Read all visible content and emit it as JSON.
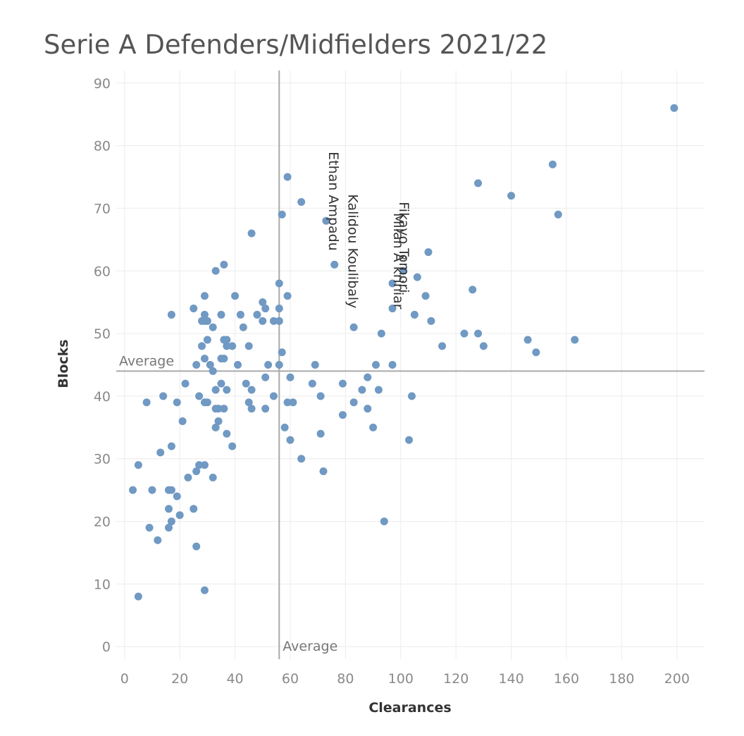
{
  "chart_data": {
    "type": "scatter",
    "title": "Serie A Defenders/Midfielders 2021/22",
    "xlabel": "Clearances",
    "ylabel": "Blocks",
    "xlim": [
      -3,
      210
    ],
    "ylim": [
      -2,
      92
    ],
    "x_ticks": [
      0,
      20,
      40,
      60,
      80,
      100,
      120,
      140,
      160,
      180,
      200
    ],
    "y_ticks": [
      0,
      10,
      20,
      30,
      40,
      50,
      60,
      70,
      80,
      90
    ],
    "grid": true,
    "color": "#7099c3",
    "reference_lines": {
      "x": {
        "value": 56,
        "label": "Average"
      },
      "y": {
        "value": 44,
        "label": "Average"
      }
    },
    "points": [
      [
        199,
        86
      ],
      [
        155,
        77
      ],
      [
        157,
        69
      ],
      [
        140,
        72
      ],
      [
        128,
        74
      ],
      [
        163,
        49
      ],
      [
        146,
        49
      ],
      [
        149,
        47
      ],
      [
        126,
        57
      ],
      [
        128,
        50
      ],
      [
        130,
        48
      ],
      [
        123,
        50
      ],
      [
        115,
        48
      ],
      [
        110,
        63
      ],
      [
        109,
        56
      ],
      [
        111,
        52
      ],
      [
        106,
        59
      ],
      [
        105,
        53
      ],
      [
        101,
        60
      ],
      [
        97,
        58
      ],
      [
        97,
        54
      ],
      [
        97,
        45
      ],
      [
        93,
        50
      ],
      [
        91,
        45
      ],
      [
        92,
        41
      ],
      [
        88,
        43
      ],
      [
        86,
        41
      ],
      [
        83,
        39
      ],
      [
        88,
        38
      ],
      [
        90,
        35
      ],
      [
        104,
        40
      ],
      [
        103,
        33
      ],
      [
        94,
        20
      ],
      [
        83,
        51
      ],
      [
        76,
        61
      ],
      [
        73,
        68
      ],
      [
        64,
        71
      ],
      [
        59,
        75
      ],
      [
        57,
        69
      ],
      [
        56,
        58
      ],
      [
        59,
        56
      ],
      [
        56,
        54
      ],
      [
        56,
        52
      ],
      [
        54,
        52
      ],
      [
        57,
        47
      ],
      [
        56,
        45
      ],
      [
        52,
        45
      ],
      [
        51,
        43
      ],
      [
        51,
        38
      ],
      [
        54,
        40
      ],
      [
        60,
        43
      ],
      [
        59,
        39
      ],
      [
        61,
        39
      ],
      [
        58,
        35
      ],
      [
        60,
        33
      ],
      [
        64,
        30
      ],
      [
        72,
        28
      ],
      [
        71,
        34
      ],
      [
        71,
        40
      ],
      [
        68,
        42
      ],
      [
        69,
        45
      ],
      [
        79,
        42
      ],
      [
        79,
        37
      ],
      [
        46,
        66
      ],
      [
        40,
        56
      ],
      [
        42,
        53
      ],
      [
        43,
        51
      ],
      [
        45,
        48
      ],
      [
        44,
        42
      ],
      [
        45,
        39
      ],
      [
        46,
        38
      ],
      [
        46,
        41
      ],
      [
        50,
        55
      ],
      [
        51,
        54
      ],
      [
        48,
        53
      ],
      [
        50,
        52
      ],
      [
        36,
        61
      ],
      [
        33,
        60
      ],
      [
        29,
        56
      ],
      [
        29,
        53
      ],
      [
        29,
        52
      ],
      [
        30,
        52
      ],
      [
        28,
        52
      ],
      [
        32,
        51
      ],
      [
        30,
        49
      ],
      [
        28,
        48
      ],
      [
        26,
        45
      ],
      [
        29,
        46
      ],
      [
        31,
        45
      ],
      [
        32,
        44
      ],
      [
        35,
        53
      ],
      [
        36,
        49
      ],
      [
        37,
        49
      ],
      [
        37,
        48
      ],
      [
        39,
        48
      ],
      [
        35,
        46
      ],
      [
        36,
        46
      ],
      [
        41,
        45
      ],
      [
        35,
        42
      ],
      [
        33,
        41
      ],
      [
        37,
        41
      ],
      [
        27,
        40
      ],
      [
        29,
        39
      ],
      [
        30,
        39
      ],
      [
        33,
        38
      ],
      [
        34,
        38
      ],
      [
        36,
        38
      ],
      [
        34,
        36
      ],
      [
        33,
        35
      ],
      [
        37,
        34
      ],
      [
        39,
        32
      ],
      [
        25,
        54
      ],
      [
        17,
        53
      ],
      [
        22,
        42
      ],
      [
        14,
        40
      ],
      [
        8,
        39
      ],
      [
        19,
        39
      ],
      [
        21,
        36
      ],
      [
        17,
        32
      ],
      [
        13,
        31
      ],
      [
        5,
        29
      ],
      [
        27,
        29
      ],
      [
        29,
        29
      ],
      [
        26,
        28
      ],
      [
        32,
        27
      ],
      [
        23,
        27
      ],
      [
        3,
        25
      ],
      [
        10,
        25
      ],
      [
        16,
        25
      ],
      [
        17,
        25
      ],
      [
        19,
        24
      ],
      [
        16,
        22
      ],
      [
        25,
        22
      ],
      [
        20,
        21
      ],
      [
        17,
        20
      ],
      [
        9,
        19
      ],
      [
        16,
        19
      ],
      [
        12,
        17
      ],
      [
        26,
        16
      ],
      [
        29,
        9
      ],
      [
        5,
        8
      ]
    ],
    "annotations": [
      {
        "text": "Ethan Ampadu",
        "x": 73,
        "y": 68
      },
      {
        "text": "Kalidou Koulibaly",
        "x": 80,
        "y": 61
      },
      {
        "text": "Fikayo Tomori",
        "x": 97,
        "y": 60
      },
      {
        "text": "Milan Å kriniar",
        "x": 95,
        "y": 58
      }
    ]
  }
}
